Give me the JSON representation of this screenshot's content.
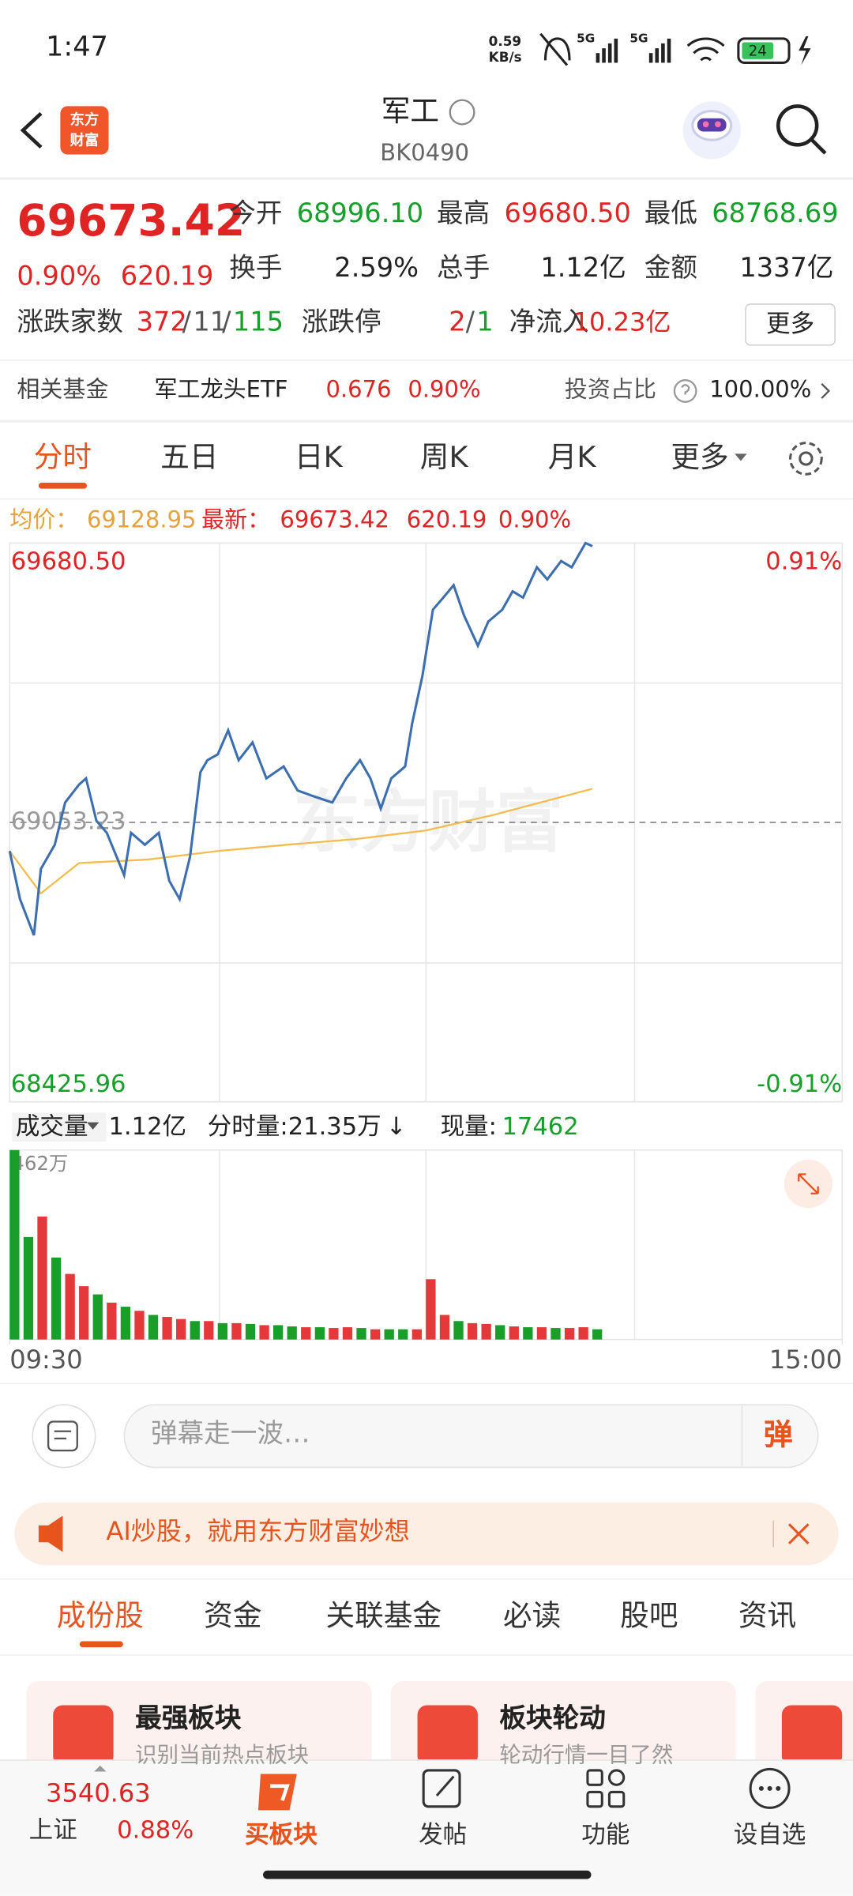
{
  "status_bar": {
    "time": "1:47",
    "net_speed": "0.59",
    "net_unit": "KB/s",
    "signal_1": "5G",
    "signal_2": "5G",
    "battery": "24"
  },
  "header": {
    "logo": [
      "东方",
      "财富"
    ],
    "title": "军工",
    "code": "BK0490"
  },
  "quote": {
    "price": "69673.42",
    "change_pct": "0.90%",
    "change": "620.19",
    "fields": [
      [
        "今开",
        "68996.10"
      ],
      [
        "最高",
        "69680.50"
      ],
      [
        "最低",
        "68768.69"
      ],
      [
        "换手",
        "2.59%"
      ],
      [
        "总手",
        "1.12亿"
      ],
      [
        "金额",
        "1337亿"
      ]
    ],
    "breadth": {
      "label": "涨跌家数",
      "up": "372",
      "flat": "11",
      "down": "115"
    },
    "separator": "/",
    "limit": {
      "label": "涨跌停",
      "up": "2",
      "down": "1"
    },
    "net_inflow": {
      "label": "净流入",
      "value": "10.23亿"
    },
    "more": "更多"
  },
  "fund": {
    "label": "相关基金",
    "name": "军工龙头ETF",
    "price": "0.676",
    "change_pct": "0.90%",
    "ratio_label": "投资占比",
    "ratio": "100.00%"
  },
  "chart_tabs": [
    "分时",
    "五日",
    "日K",
    "周K",
    "月K",
    "更多"
  ],
  "intraday": {
    "avg_label": "均价：",
    "avg": "69128.95",
    "latest_label": "最新：",
    "latest": "69673.42",
    "change": "620.19",
    "change_pct": "0.90%",
    "watermark": "东方财富"
  },
  "volume_header": {
    "label": "成交量",
    "total": "1.12亿",
    "minute": "分时量:21.35万",
    "arrow": "↓",
    "current_label": "现量:",
    "current": "17462"
  },
  "danmaku": {
    "placeholder": "弹幕走一波…",
    "button": "弹"
  },
  "banner": "AI炒股，就用东方财富妙想",
  "content_tabs": [
    "成份股",
    "资金",
    "关联基金",
    "必读",
    "股吧",
    "资讯"
  ],
  "cards": [
    {
      "title": "最强板块",
      "subtitle": "识别当前热点板块"
    },
    {
      "title": "板块轮动",
      "subtitle": "轮动行情一目了然"
    }
  ],
  "bottom_nav": {
    "index_name": "上证",
    "index_value": "3540.63",
    "index_pct": "0.88%",
    "items": [
      "买板块",
      "发帖",
      "功能",
      "设自选"
    ]
  },
  "chart_data": [
    {
      "type": "line",
      "xlim": [
        0,
        240
      ],
      "ylim": [
        68425.96,
        69680.5
      ],
      "yticks": [
        {
          "value": 69680.5,
          "label": "69680.50"
        },
        69053.23,
        68425.96
      ],
      "y2lim": [
        -0.91,
        0.91
      ],
      "y2ticks": [
        {
          "value": 0.91,
          "label": "0.91%"
        },
        {
          "value": -0.91,
          "label": "-0.91%"
        }
      ],
      "series": [
        {
          "color": "#3b6fb0",
          "x": [
            0,
            3,
            7,
            9,
            13,
            16,
            20,
            22,
            25,
            28,
            33,
            35,
            39,
            43,
            46,
            49,
            52,
            55,
            57,
            60,
            63,
            66,
            70,
            74,
            79,
            83,
            88,
            93,
            97,
            101,
            104,
            107,
            110,
            114,
            116,
            119,
            122,
            125,
            128,
            131,
            135,
            138,
            142,
            145,
            148,
            152,
            155,
            159,
            162,
            166,
            168
          ],
          "values": [
            68989,
            68881,
            68800,
            68949,
            69003,
            69098,
            69138,
            69152,
            69057,
            69030,
            68935,
            69030,
            69003,
            69030,
            68922,
            68881,
            68976,
            69166,
            69193,
            69206,
            69260,
            69193,
            69233,
            69152,
            69179,
            69125,
            69111,
            69098,
            69152,
            69193,
            69152,
            69084,
            69152,
            69179,
            69274,
            69382,
            69531,
            69558,
            69586,
            69518,
            69450,
            69504,
            69531,
            69572,
            69558,
            69626,
            69599,
            69640,
            69626,
            69680.5,
            69673.42
          ]
        },
        {
          "color": "#f2bd4e",
          "x": [
            0,
            9,
            20,
            40,
            60,
            80,
            100,
            120,
            140,
            168
          ],
          "values": [
            68989,
            68894,
            68962,
            68970,
            68989,
            69003,
            69016,
            69035,
            69071,
            69128.95
          ]
        }
      ]
    },
    {
      "type": "bar",
      "xlim": [
        0,
        240
      ],
      "ylim": [
        0,
        462
      ],
      "yticks": [
        {
          "value": 462,
          "label": "462万"
        }
      ],
      "xticks": [
        {
          "value": 0,
          "label": "09:30"
        },
        {
          "value": 240,
          "label": "15:00"
        }
      ],
      "x": [
        0,
        4,
        8,
        12,
        16,
        20,
        24,
        28,
        32,
        36,
        40,
        44,
        48,
        52,
        56,
        60,
        64,
        68,
        72,
        76,
        80,
        84,
        88,
        92,
        96,
        100,
        104,
        108,
        112,
        116,
        120,
        124,
        128,
        132,
        136,
        140,
        144,
        148,
        152,
        156,
        160,
        164,
        168
      ],
      "values": [
        462,
        250,
        300,
        200,
        160,
        130,
        110,
        90,
        80,
        70,
        60,
        55,
        50,
        45,
        45,
        40,
        40,
        38,
        35,
        35,
        32,
        30,
        30,
        28,
        30,
        28,
        25,
        25,
        25,
        25,
        147,
        60,
        45,
        40,
        38,
        35,
        32,
        30,
        30,
        28,
        28,
        30,
        25
      ],
      "colors": [
        "#1a9e2a",
        "#1a9e2a",
        "#e5383b",
        "#1a9e2a",
        "#e5383b",
        "#e5383b",
        "#1a9e2a",
        "#e5383b",
        "#1a9e2a",
        "#e5383b",
        "#1a9e2a",
        "#e5383b",
        "#e5383b",
        "#1a9e2a",
        "#e5383b",
        "#1a9e2a",
        "#e5383b",
        "#1a9e2a",
        "#e5383b",
        "#1a9e2a",
        "#1a9e2a",
        "#e5383b",
        "#1a9e2a",
        "#e5383b",
        "#e5383b",
        "#1a9e2a",
        "#e5383b",
        "#1a9e2a",
        "#1a9e2a",
        "#e5383b",
        "#e5383b",
        "#e5383b",
        "#1a9e2a",
        "#e5383b",
        "#e5383b",
        "#1a9e2a",
        "#e5383b",
        "#1a9e2a",
        "#e5383b",
        "#1a9e2a",
        "#e5383b",
        "#e5383b",
        "#1a9e2a"
      ]
    }
  ]
}
